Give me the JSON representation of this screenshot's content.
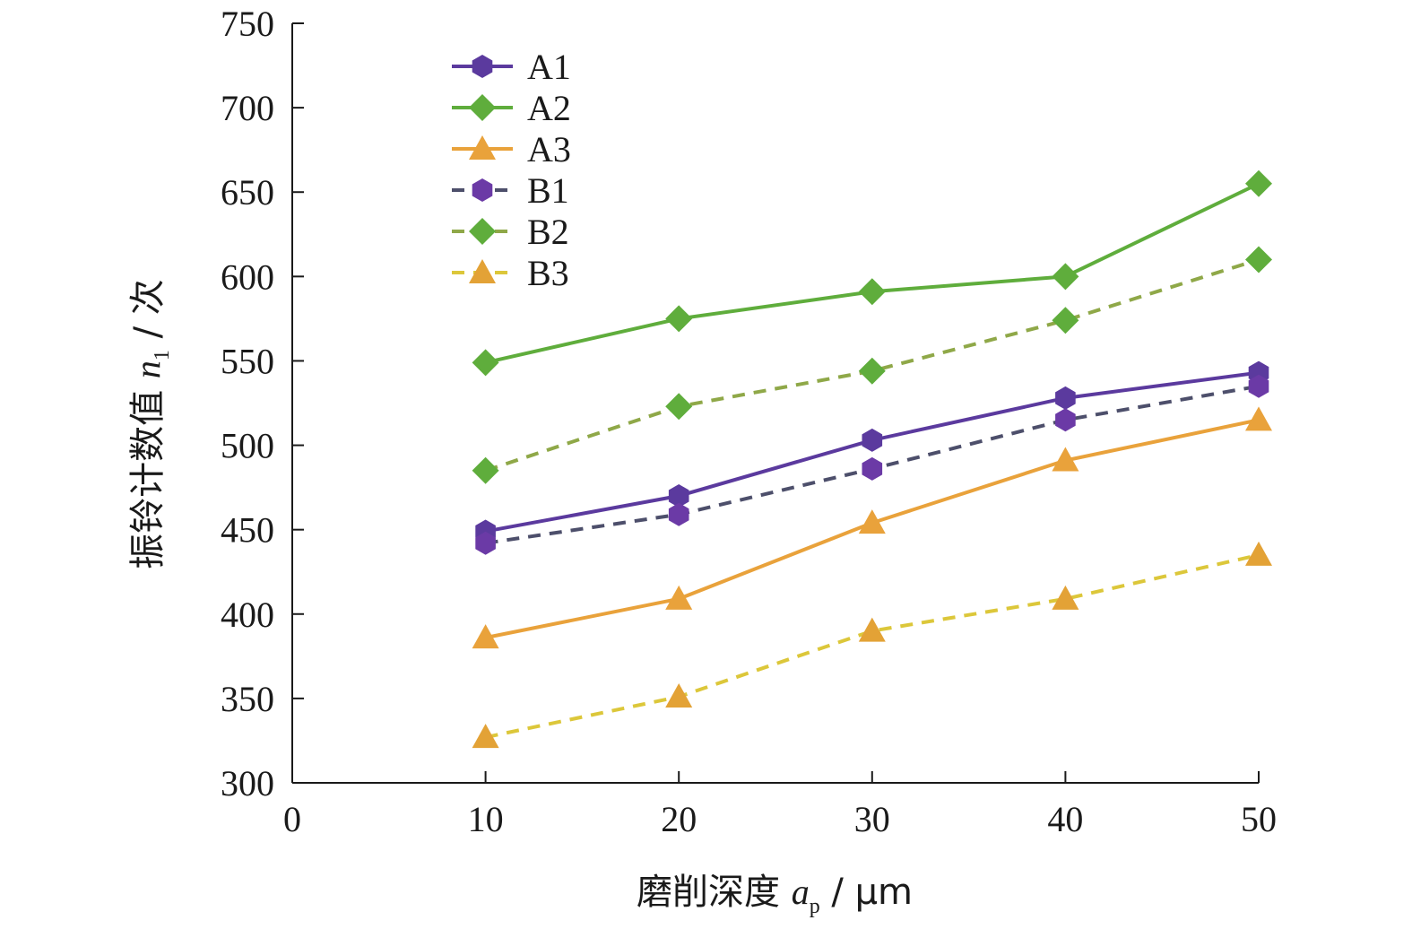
{
  "chart_data": {
    "type": "line",
    "x": [
      10,
      20,
      30,
      40,
      50
    ],
    "xlim": [
      0,
      50
    ],
    "ylim": [
      300,
      750
    ],
    "x_ticks": [
      "0",
      "10",
      "20",
      "30",
      "40",
      "50"
    ],
    "y_ticks": [
      "300",
      "350",
      "400",
      "450",
      "500",
      "550",
      "600",
      "650",
      "700",
      "750"
    ],
    "xlabel": {
      "main": "磨削深度 ",
      "var": "a",
      "sub": "p",
      "unit": " / μm"
    },
    "ylabel": {
      "main": "振铃计数值 ",
      "var": "n",
      "sub": "1",
      "unit": " / 次"
    },
    "grid": false,
    "legend_position": "top-left",
    "series": [
      {
        "name": "A1",
        "values": [
          449,
          470,
          503,
          528,
          543
        ],
        "color": "#5b3a9e",
        "marker": "circle",
        "dash": "solid"
      },
      {
        "name": "A2",
        "values": [
          549,
          575,
          591,
          600,
          655
        ],
        "color": "#5fad3c",
        "marker": "diamond",
        "dash": "solid"
      },
      {
        "name": "A3",
        "values": [
          386,
          409,
          454,
          491,
          515
        ],
        "color": "#e9a23b",
        "marker": "triangle",
        "dash": "solid"
      },
      {
        "name": "B1",
        "values": [
          442,
          459,
          486,
          515,
          535
        ],
        "color": "#6b3aa6",
        "marker": "circle",
        "dash": "dashed",
        "line_color": "#4d4f6b"
      },
      {
        "name": "B2",
        "values": [
          485,
          523,
          544,
          574,
          610
        ],
        "color": "#5fad3c",
        "marker": "diamond",
        "dash": "dashed",
        "line_color": "#8fa848"
      },
      {
        "name": "B3",
        "values": [
          327,
          351,
          390,
          409,
          435
        ],
        "color": "#e3a236",
        "marker": "triangle",
        "dash": "dashed",
        "line_color": "#dcc73a"
      }
    ]
  }
}
